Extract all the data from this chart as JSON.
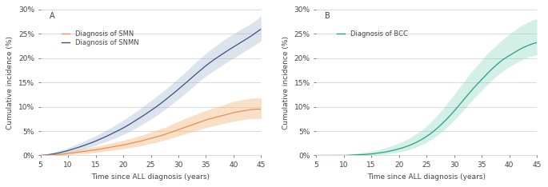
{
  "panel_A": {
    "label": "A",
    "xlabel": "Time since ALL diagnosis (years)",
    "ylabel": "Cumulative incidence (%)",
    "xlim": [
      5,
      45
    ],
    "ylim": [
      0,
      30
    ],
    "yticks": [
      0,
      5,
      10,
      15,
      20,
      25,
      30
    ],
    "ytick_labels": [
      "0%",
      "5%",
      "10%",
      "15%",
      "20%",
      "25%",
      "30%"
    ],
    "xticks": [
      5,
      10,
      15,
      20,
      25,
      30,
      35,
      40,
      45
    ],
    "smn_color": "#E89050",
    "smn_ci_color": "#F0B880",
    "snmn_color": "#3A5080",
    "snmn_ci_color": "#9BB0CC",
    "legend_smn": "Diagnosis of SMN",
    "legend_snmn": "Diagnosis of SNMN",
    "smn_x": [
      5.0,
      6.0,
      7.0,
      8.0,
      9.0,
      10.0,
      11.0,
      12.0,
      13.0,
      14.0,
      15.0,
      16.0,
      17.0,
      18.0,
      19.0,
      20.0,
      21.0,
      22.0,
      23.0,
      24.0,
      25.0,
      26.0,
      27.0,
      28.0,
      29.0,
      30.0,
      31.0,
      32.0,
      33.0,
      34.0,
      35.0,
      36.0,
      37.0,
      38.0,
      39.0,
      40.0,
      41.0,
      42.0,
      43.0,
      44.0,
      45.0
    ],
    "smn_y": [
      0.0,
      0.05,
      0.1,
      0.15,
      0.25,
      0.4,
      0.55,
      0.7,
      0.85,
      1.0,
      1.15,
      1.35,
      1.55,
      1.75,
      1.95,
      2.15,
      2.4,
      2.65,
      2.9,
      3.2,
      3.5,
      3.8,
      4.1,
      4.5,
      4.9,
      5.3,
      5.7,
      6.1,
      6.5,
      6.9,
      7.3,
      7.6,
      7.9,
      8.2,
      8.5,
      8.8,
      9.0,
      9.2,
      9.4,
      9.5,
      9.5
    ],
    "smn_lo": [
      0.0,
      0.0,
      0.0,
      0.0,
      0.05,
      0.1,
      0.2,
      0.3,
      0.4,
      0.5,
      0.6,
      0.75,
      0.9,
      1.05,
      1.2,
      1.35,
      1.55,
      1.75,
      1.95,
      2.2,
      2.45,
      2.7,
      3.0,
      3.3,
      3.65,
      4.0,
      4.35,
      4.7,
      5.05,
      5.35,
      5.7,
      6.0,
      6.25,
      6.5,
      6.75,
      7.0,
      7.2,
      7.4,
      7.55,
      7.6,
      7.6
    ],
    "smn_hi": [
      0.0,
      0.15,
      0.25,
      0.4,
      0.55,
      0.8,
      1.05,
      1.25,
      1.45,
      1.65,
      1.85,
      2.1,
      2.35,
      2.6,
      2.85,
      3.1,
      3.4,
      3.7,
      4.05,
      4.4,
      4.8,
      5.2,
      5.55,
      6.0,
      6.5,
      7.0,
      7.5,
      7.95,
      8.35,
      8.8,
      9.2,
      9.6,
      9.95,
      10.3,
      10.7,
      11.1,
      11.3,
      11.5,
      11.7,
      11.8,
      11.8
    ],
    "snmn_x": [
      5.0,
      6.0,
      7.0,
      8.0,
      9.0,
      10.0,
      11.0,
      12.0,
      13.0,
      14.0,
      15.0,
      16.0,
      17.0,
      18.0,
      19.0,
      20.0,
      21.0,
      22.0,
      23.0,
      24.0,
      25.0,
      26.0,
      27.0,
      28.0,
      29.0,
      30.0,
      31.0,
      32.0,
      33.0,
      34.0,
      35.0,
      36.0,
      37.0,
      38.0,
      39.0,
      40.0,
      41.0,
      42.0,
      43.0,
      44.0,
      45.0
    ],
    "snmn_y": [
      0.0,
      0.1,
      0.25,
      0.45,
      0.7,
      1.0,
      1.35,
      1.7,
      2.1,
      2.5,
      2.95,
      3.45,
      3.95,
      4.5,
      5.05,
      5.65,
      6.3,
      7.0,
      7.7,
      8.45,
      9.2,
      10.0,
      10.85,
      11.75,
      12.65,
      13.6,
      14.55,
      15.55,
      16.55,
      17.5,
      18.45,
      19.3,
      20.1,
      20.85,
      21.6,
      22.3,
      23.0,
      23.7,
      24.4,
      25.2,
      26.0
    ],
    "snmn_lo": [
      0.0,
      0.0,
      0.05,
      0.15,
      0.35,
      0.6,
      0.85,
      1.1,
      1.4,
      1.75,
      2.1,
      2.5,
      2.9,
      3.35,
      3.8,
      4.3,
      4.85,
      5.45,
      6.1,
      6.75,
      7.45,
      8.2,
      9.0,
      9.85,
      10.7,
      11.6,
      12.5,
      13.45,
      14.45,
      15.4,
      16.3,
      17.1,
      17.85,
      18.55,
      19.3,
      20.0,
      20.7,
      21.4,
      22.1,
      22.8,
      23.5
    ],
    "snmn_hi": [
      0.0,
      0.3,
      0.55,
      0.85,
      1.2,
      1.6,
      2.05,
      2.5,
      3.0,
      3.5,
      4.05,
      4.65,
      5.25,
      5.9,
      6.55,
      7.25,
      8.0,
      8.75,
      9.55,
      10.4,
      11.25,
      12.1,
      13.0,
      13.9,
      14.85,
      15.85,
      16.85,
      17.9,
      19.0,
      20.0,
      21.0,
      21.9,
      22.75,
      23.55,
      24.3,
      25.0,
      25.7,
      26.35,
      27.0,
      27.8,
      28.8
    ]
  },
  "panel_B": {
    "label": "B",
    "xlabel": "Time since ALL diagnosis (years)",
    "ylabel": "Cumulative incidence (%)",
    "xlim": [
      5,
      45
    ],
    "ylim": [
      0,
      30
    ],
    "yticks": [
      0,
      5,
      10,
      15,
      20,
      25,
      30
    ],
    "ytick_labels": [
      "0%",
      "5%",
      "10%",
      "15%",
      "20%",
      "25%",
      "30%"
    ],
    "xticks": [
      5,
      10,
      15,
      20,
      25,
      30,
      35,
      40,
      45
    ],
    "bcc_color": "#2A9E80",
    "bcc_ci_color": "#80D4B8",
    "legend_bcc": "Diagnosis of BCC",
    "bcc_x": [
      5.0,
      6.0,
      7.0,
      8.0,
      9.0,
      10.0,
      11.0,
      12.0,
      13.0,
      14.0,
      15.0,
      16.0,
      17.0,
      18.0,
      19.0,
      20.0,
      21.0,
      22.0,
      23.0,
      24.0,
      25.0,
      26.0,
      27.0,
      28.0,
      29.0,
      30.0,
      31.0,
      32.0,
      33.0,
      34.0,
      35.0,
      36.0,
      37.0,
      38.0,
      39.0,
      40.0,
      41.0,
      42.0,
      43.0,
      44.0,
      45.0
    ],
    "bcc_y": [
      0.0,
      0.0,
      0.0,
      0.0,
      0.0,
      0.0,
      0.05,
      0.1,
      0.15,
      0.2,
      0.3,
      0.45,
      0.6,
      0.8,
      1.05,
      1.35,
      1.7,
      2.1,
      2.6,
      3.2,
      3.9,
      4.7,
      5.65,
      6.7,
      7.85,
      9.1,
      10.45,
      11.8,
      13.15,
      14.4,
      15.6,
      16.8,
      17.9,
      18.9,
      19.8,
      20.5,
      21.2,
      21.85,
      22.4,
      22.85,
      23.2
    ],
    "bcc_lo": [
      0.0,
      0.0,
      0.0,
      0.0,
      0.0,
      0.0,
      0.0,
      0.0,
      0.0,
      0.0,
      0.05,
      0.1,
      0.2,
      0.35,
      0.5,
      0.7,
      0.95,
      1.25,
      1.65,
      2.15,
      2.7,
      3.4,
      4.2,
      5.1,
      6.1,
      7.2,
      8.4,
      9.7,
      11.0,
      12.2,
      13.4,
      14.55,
      15.6,
      16.6,
      17.5,
      18.2,
      18.9,
      19.5,
      20.0,
      20.4,
      20.7
    ],
    "bcc_hi": [
      0.0,
      0.0,
      0.0,
      0.0,
      0.0,
      0.05,
      0.2,
      0.4,
      0.55,
      0.7,
      0.85,
      1.1,
      1.4,
      1.75,
      2.1,
      2.55,
      3.05,
      3.65,
      4.35,
      5.1,
      6.0,
      7.1,
      8.3,
      9.65,
      11.05,
      12.5,
      14.0,
      15.5,
      17.0,
      18.3,
      19.6,
      20.85,
      21.95,
      23.0,
      24.0,
      24.9,
      25.75,
      26.55,
      27.15,
      27.7,
      28.0
    ]
  },
  "bg_color": "#FFFFFF",
  "plot_bg_color": "#FFFFFF",
  "grid_color": "#CCCCCC",
  "text_color": "#444444",
  "font_size": 6.5,
  "label_font_size": 6.5,
  "legend_font_size": 6.0
}
